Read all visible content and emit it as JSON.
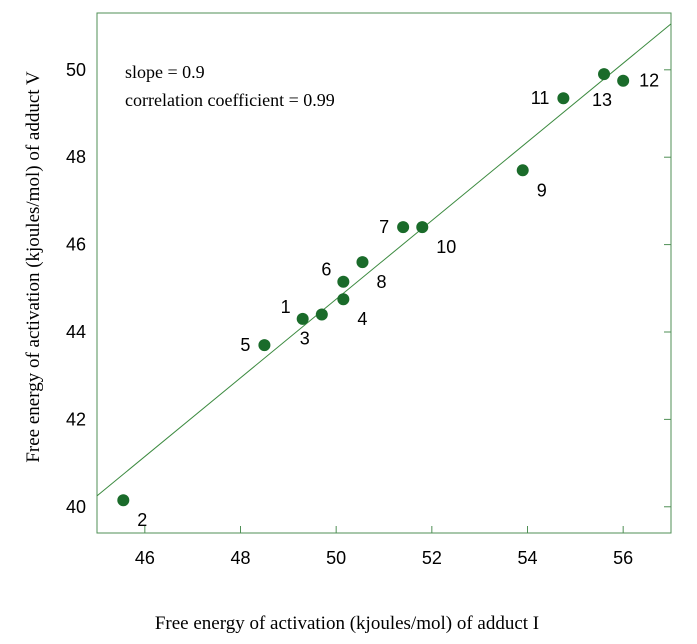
{
  "chart_data": {
    "type": "scatter",
    "xlabel": "Free energy of activation (kjoules/mol) of adduct I",
    "ylabel": "Free energy of activation (kjoules/mol) of adduct V",
    "xlim": [
      45,
      57
    ],
    "ylim": [
      39.4,
      51.3
    ],
    "xticks": [
      46,
      48,
      50,
      52,
      54,
      56
    ],
    "yticks": [
      40,
      42,
      44,
      46,
      48,
      50
    ],
    "grid": false,
    "annotations": [
      "slope = 0.9",
      "correlation coefficient = 0.99"
    ],
    "trendline": {
      "x": [
        45,
        57
      ],
      "y": [
        40.25,
        51.05
      ]
    },
    "colors": {
      "points": "#1a6b2a",
      "line": "#3b8a3f",
      "frame": "#4f8f55"
    },
    "points": [
      {
        "label": "1",
        "x": 49.3,
        "y": 44.3,
        "label_side": "upper-left"
      },
      {
        "label": "2",
        "x": 45.55,
        "y": 40.15,
        "label_side": "lower-right"
      },
      {
        "label": "3",
        "x": 49.7,
        "y": 44.4,
        "label_side": "lower-left"
      },
      {
        "label": "4",
        "x": 50.15,
        "y": 44.75,
        "label_side": "lower-right"
      },
      {
        "label": "5",
        "x": 48.5,
        "y": 43.7,
        "label_side": "left"
      },
      {
        "label": "6",
        "x": 50.15,
        "y": 45.15,
        "label_side": "upper-left"
      },
      {
        "label": "7",
        "x": 51.4,
        "y": 46.4,
        "label_side": "left"
      },
      {
        "label": "8",
        "x": 50.55,
        "y": 45.6,
        "label_side": "lower-right"
      },
      {
        "label": "9",
        "x": 53.9,
        "y": 47.7,
        "label_side": "lower-right"
      },
      {
        "label": "10",
        "x": 51.8,
        "y": 46.4,
        "label_side": "lower-right"
      },
      {
        "label": "11",
        "x": 54.75,
        "y": 49.35,
        "label_side": "left"
      },
      {
        "label": "12",
        "x": 56.0,
        "y": 49.75,
        "label_side": "right"
      },
      {
        "label": "13",
        "x": 55.6,
        "y": 49.9,
        "label_side": "below"
      }
    ]
  }
}
